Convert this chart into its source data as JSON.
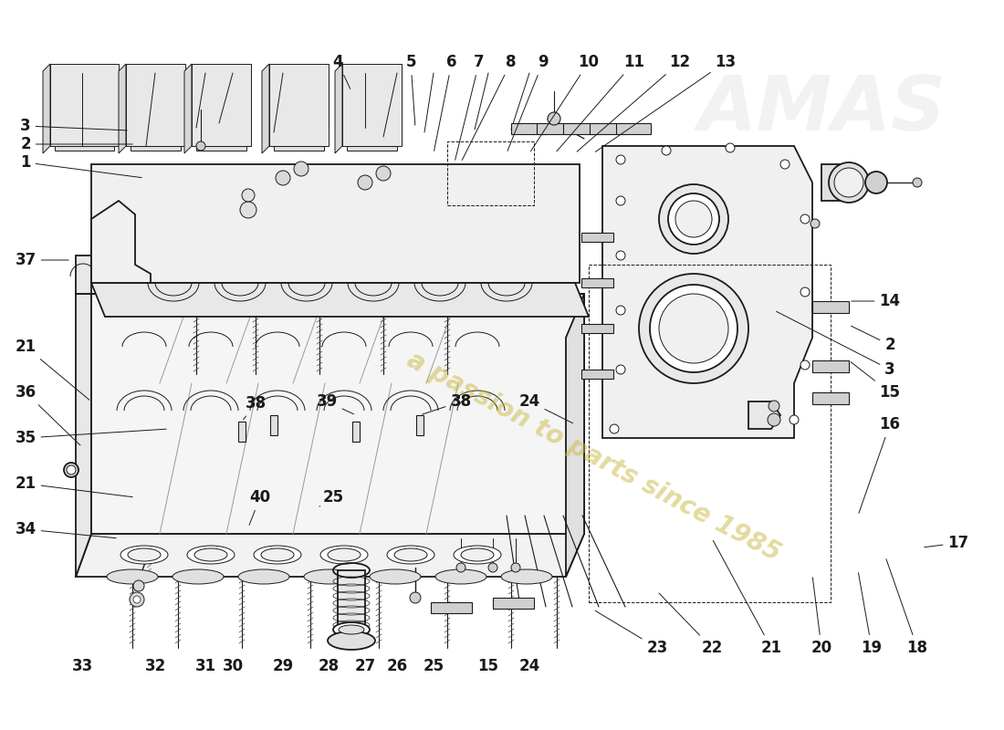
{
  "bg": "#ffffff",
  "lc": "#1a1a1a",
  "lc_light": "#888888",
  "lw": 1.3,
  "lw_thin": 0.7,
  "lw_label": 0.7,
  "label_fs": 12,
  "label_fw": "bold",
  "wm_text": "a passion to parts since 1985",
  "wm_color": "#c8b840",
  "wm_alpha": 0.5,
  "wm_fs": 20,
  "wm_rotation": -28
}
